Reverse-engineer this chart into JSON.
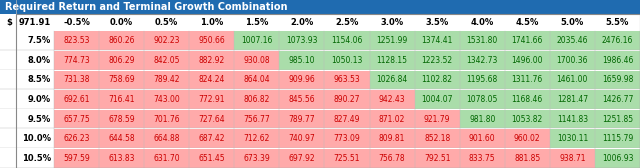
{
  "title": "Required Return and Terminal Growth Combination",
  "title_bg": "#1F6BB0",
  "title_color": "#FFFFFF",
  "header_label1": "$",
  "header_label2": "971.91",
  "col_headers": [
    "-0.5%",
    "0.0%",
    "0.5%",
    "1.0%",
    "1.5%",
    "2.0%",
    "2.5%",
    "3.0%",
    "3.5%",
    "4.0%",
    "4.5%",
    "5.0%",
    "5.5%"
  ],
  "row_headers": [
    "7.5%",
    "8.0%",
    "8.5%",
    "9.0%",
    "9.5%",
    "10.0%",
    "10.5%"
  ],
  "values": [
    [
      823.53,
      860.26,
      902.23,
      950.66,
      1007.16,
      1073.93,
      1154.06,
      1251.99,
      1374.41,
      1531.8,
      1741.66,
      2035.46,
      2476.16
    ],
    [
      774.73,
      806.29,
      842.05,
      882.92,
      930.08,
      985.1,
      1050.13,
      1128.15,
      1223.52,
      1342.73,
      1496.0,
      1700.36,
      1986.46
    ],
    [
      731.38,
      758.69,
      789.42,
      824.24,
      864.04,
      909.96,
      963.53,
      1026.84,
      1102.82,
      1195.68,
      1311.76,
      1461.0,
      1659.98
    ],
    [
      692.61,
      716.41,
      743.0,
      772.91,
      806.82,
      845.56,
      890.27,
      942.43,
      1004.07,
      1078.05,
      1168.46,
      1281.47,
      1426.77
    ],
    [
      657.75,
      678.59,
      701.76,
      727.64,
      756.77,
      789.77,
      827.49,
      871.02,
      921.79,
      981.8,
      1053.82,
      1141.83,
      1251.85
    ],
    [
      626.23,
      644.58,
      664.88,
      687.42,
      712.62,
      740.97,
      773.09,
      809.81,
      852.18,
      901.6,
      960.02,
      1030.11,
      1115.79
    ],
    [
      597.59,
      613.83,
      631.7,
      651.45,
      673.39,
      697.92,
      725.51,
      756.78,
      792.51,
      833.75,
      881.85,
      938.71,
      1006.93
    ]
  ],
  "threshold": 971.91,
  "color_below": "#FFAAAA",
  "color_above": "#AADDAA",
  "text_color_below": "#CC0000",
  "text_color_above": "#006600",
  "border_color": "#BBBBBB",
  "title_fontsize": 7,
  "header_fontsize": 6,
  "cell_fontsize": 5.5,
  "row_label_fontsize": 6
}
